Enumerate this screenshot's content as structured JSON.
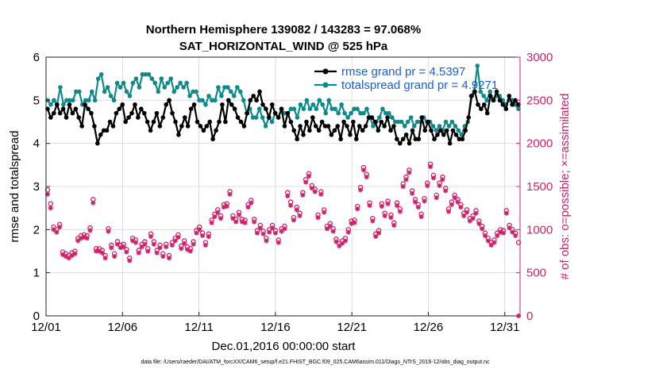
{
  "chart_data": {
    "type": "line",
    "title": "Northern Hemisphere 139082 / 143283 = 97.068%",
    "subtitle": "SAT_HORIZONTAL_WIND @ 525 hPa",
    "xlabel": "Dec.01,2016 00:00:00 start",
    "ylabel_left": "rmse and totalspread",
    "ylabel_right": "# of obs: o=possible; ×=assimilated",
    "xlim": [
      1,
      32
    ],
    "ylim_left": [
      0,
      6
    ],
    "ylim_right": [
      0,
      3000
    ],
    "x_tick_labels": [
      "12/01",
      "12/06",
      "12/11",
      "12/16",
      "12/21",
      "12/26",
      "12/31"
    ],
    "y_left_tick_labels": [
      "0",
      "1",
      "2",
      "3",
      "4",
      "5",
      "6"
    ],
    "y_right_tick_labels": [
      "0",
      "500",
      "1000",
      "1500",
      "2000",
      "2500",
      "3000"
    ],
    "grid": true,
    "legend_position": "top-right",
    "colors": {
      "rmse": "#000000",
      "totalspread": "#0f8a8a",
      "obs": "#d0206a",
      "right_axis": "#d0206a",
      "legend_text": "#1a5fd6"
    },
    "series": [
      {
        "name": "rmse grand pr = 4.5397",
        "axis": "left",
        "values": [
          4.8,
          4.6,
          4.7,
          4.9,
          4.7,
          4.8,
          4.6,
          4.9,
          4.7,
          4.8,
          4.6,
          4.4,
          4.9,
          4.8,
          4.7,
          4.4,
          4.0,
          4.2,
          4.3,
          4.3,
          4.5,
          4.4,
          4.7,
          4.8,
          4.9,
          4.5,
          4.6,
          4.7,
          4.9,
          4.6,
          4.8,
          4.7,
          4.5,
          4.3,
          4.5,
          4.7,
          4.4,
          4.6,
          4.9,
          5.0,
          4.7,
          4.5,
          4.2,
          4.4,
          4.6,
          4.4,
          4.8,
          4.9,
          4.5,
          4.4,
          4.3,
          4.4,
          4.5,
          4.1,
          4.3,
          4.5,
          4.9,
          4.5,
          5.0,
          4.9,
          4.8,
          4.6,
          4.5,
          4.4,
          4.7,
          5.0,
          5.1,
          5.0,
          5.2,
          4.9,
          4.8,
          4.6,
          4.9,
          4.7,
          4.6,
          4.8,
          4.4,
          4.7,
          4.5,
          4.3,
          4.1,
          4.4,
          4.2,
          4.5,
          4.3,
          4.6,
          4.4,
          4.3,
          4.5,
          4.4,
          4.4,
          4.2,
          4.3,
          4.4,
          4.1,
          4.5,
          4.4,
          4.2,
          4.5,
          4.1,
          4.4,
          4.3,
          4.4,
          4.6,
          4.6,
          4.5,
          4.3,
          4.5,
          4.4,
          4.6,
          4.3,
          4.4,
          4.1,
          4.0,
          4.1,
          4.2,
          4.0,
          4.3,
          4.1,
          4.1,
          4.6,
          4.3,
          4.5,
          4.3,
          4.1,
          4.2,
          4.3,
          4.2,
          4.3,
          4.0,
          4.3,
          4.2,
          4.1,
          4.1,
          4.3,
          4.6,
          5.1,
          5.2,
          4.9,
          4.8,
          4.9,
          4.7,
          5.1,
          5.0,
          5.2,
          5.0,
          4.9,
          4.8,
          5.1,
          4.9,
          5.0,
          4.9
        ]
      },
      {
        "name": "totalspread grand pr = 4.9271",
        "axis": "left",
        "values": [
          5.0,
          4.9,
          5.0,
          4.9,
          5.3,
          4.9,
          5.0,
          5.0,
          5.0,
          5.2,
          5.2,
          4.9,
          5.0,
          5.0,
          5.2,
          5.0,
          5.5,
          5.6,
          5.2,
          5.3,
          5.1,
          5.0,
          5.4,
          5.3,
          5.4,
          5.2,
          5.1,
          5.4,
          5.5,
          5.3,
          5.6,
          5.6,
          5.6,
          5.5,
          5.4,
          5.2,
          5.5,
          5.3,
          5.4,
          5.5,
          5.2,
          5.3,
          5.4,
          5.3,
          5.4,
          5.1,
          5.2,
          5.2,
          5.0,
          5.0,
          4.9,
          5.1,
          5.0,
          5.0,
          5.3,
          5.1,
          5.3,
          5.3,
          5.2,
          5.1,
          5.3,
          5.2,
          5.0,
          4.7,
          4.8,
          4.6,
          4.6,
          4.8,
          4.6,
          4.4,
          4.6,
          4.5,
          4.7,
          4.6,
          4.8,
          4.7,
          4.7,
          4.8,
          4.8,
          4.6,
          4.9,
          4.8,
          5.0,
          4.8,
          4.9,
          4.8,
          5.0,
          4.9,
          4.7,
          5.0,
          4.8,
          4.8,
          4.7,
          4.9,
          4.7,
          4.6,
          4.7,
          4.8,
          4.8,
          4.7,
          4.7,
          4.8,
          4.6,
          4.4,
          4.5,
          4.6,
          4.8,
          4.7,
          4.7,
          4.6,
          4.5,
          4.5,
          4.5,
          4.4,
          4.5,
          4.6,
          4.4,
          4.5,
          4.5,
          4.6,
          4.5,
          4.5,
          4.4,
          4.3,
          4.4,
          4.3,
          4.5,
          4.4,
          4.5,
          4.4,
          4.3,
          4.2,
          4.4,
          4.5,
          5.1,
          5.2,
          5.8,
          5.2,
          5.1,
          5.0,
          5.2,
          5.0,
          5.1,
          5.1,
          5.0,
          4.9,
          5.0,
          5.0,
          4.9,
          4.8
        ]
      },
      {
        "name": "possible",
        "axis": "right",
        "marker": "o",
        "values": [
          1460,
          1300,
          1030,
          1000,
          1060,
          740,
          720,
          700,
          730,
          750,
          900,
          930,
          940,
          930,
          1020,
          1350,
          780,
          780,
          760,
          700,
          1010,
          820,
          720,
          860,
          820,
          830,
          770,
          670,
          900,
          880,
          760,
          830,
          860,
          780,
          950,
          860,
          760,
          820,
          720,
          830,
          700,
          850,
          900,
          940,
          810,
          870,
          800,
          780,
          860,
          990,
          1030,
          960,
          850,
          950,
          1110,
          1180,
          1230,
          1160,
          1290,
          1300,
          1440,
          1160,
          1120,
          1200,
          1120,
          1110,
          1290,
          1340,
          1120,
          990,
          1050,
          980,
          900,
          1000,
          1050,
          990,
          880,
          1010,
          1040,
          1430,
          1320,
          1140,
          1260,
          1190,
          1430,
          1580,
          1650,
          1510,
          1470,
          1170,
          1440,
          1230,
          1040,
          1070,
          1010,
          890,
          840,
          870,
          900,
          1000,
          1100,
          1110,
          1270,
          1490,
          1720,
          1640,
          1310,
          1130,
          950,
          990,
          1300,
          1190,
          1330,
          1170,
          1080,
          1310,
          1240,
          1530,
          1610,
          1690,
          1450,
          1350,
          1290,
          1180,
          1360,
          1540,
          1760,
          1630,
          1400,
          1540,
          1610,
          1480,
          1240,
          1320,
          1400,
          1350,
          1290,
          1190,
          1230,
          1130,
          1160,
          1220,
          1100,
          1040,
          960,
          900,
          850,
          880,
          960,
          1000,
          990,
          1220,
          1050,
          1000,
          960,
          850
        ]
      },
      {
        "name": "assimilated",
        "axis": "right",
        "marker": "x",
        "values": [
          1410,
          1250,
          1000,
          970,
          1030,
          710,
          690,
          670,
          700,
          720,
          870,
          900,
          910,
          900,
          990,
          1310,
          750,
          750,
          730,
          670,
          980,
          790,
          690,
          830,
          790,
          800,
          740,
          640,
          870,
          850,
          730,
          800,
          830,
          750,
          920,
          830,
          730,
          790,
          690,
          800,
          670,
          820,
          870,
          910,
          780,
          840,
          770,
          750,
          830,
          960,
          1000,
          930,
          820,
          920,
          1080,
          1150,
          1200,
          1130,
          1260,
          1270,
          1410,
          1130,
          1090,
          1170,
          1090,
          1080,
          1260,
          1310,
          1090,
          960,
          1020,
          950,
          870,
          970,
          1020,
          960,
          850,
          980,
          1010,
          1390,
          1280,
          1110,
          1230,
          1160,
          1400,
          1550,
          1620,
          1480,
          1440,
          1140,
          1410,
          1200,
          1010,
          1040,
          980,
          860,
          810,
          840,
          870,
          970,
          1070,
          1080,
          1240,
          1460,
          1690,
          1610,
          1280,
          1100,
          920,
          960,
          1270,
          1160,
          1300,
          1140,
          1050,
          1280,
          1210,
          1500,
          1580,
          1660,
          1420,
          1320,
          1260,
          1150,
          1330,
          1510,
          1730,
          1600,
          1370,
          1510,
          1580,
          1450,
          1210,
          1290,
          1370,
          1320,
          1260,
          1160,
          1200,
          1100,
          1130,
          1190,
          1070,
          1010,
          930,
          870,
          820,
          850,
          930,
          970,
          960,
          1190,
          1020,
          970,
          930,
          0
        ]
      }
    ],
    "footer": "data file: /Users/raeder/DAI/ATM_forcXX/CAM6_setup/f.e21.FHIST_BGC.f09_025.CAM6assim.011/Diags_NTrS_2016-12/obs_diag_output.nc"
  }
}
